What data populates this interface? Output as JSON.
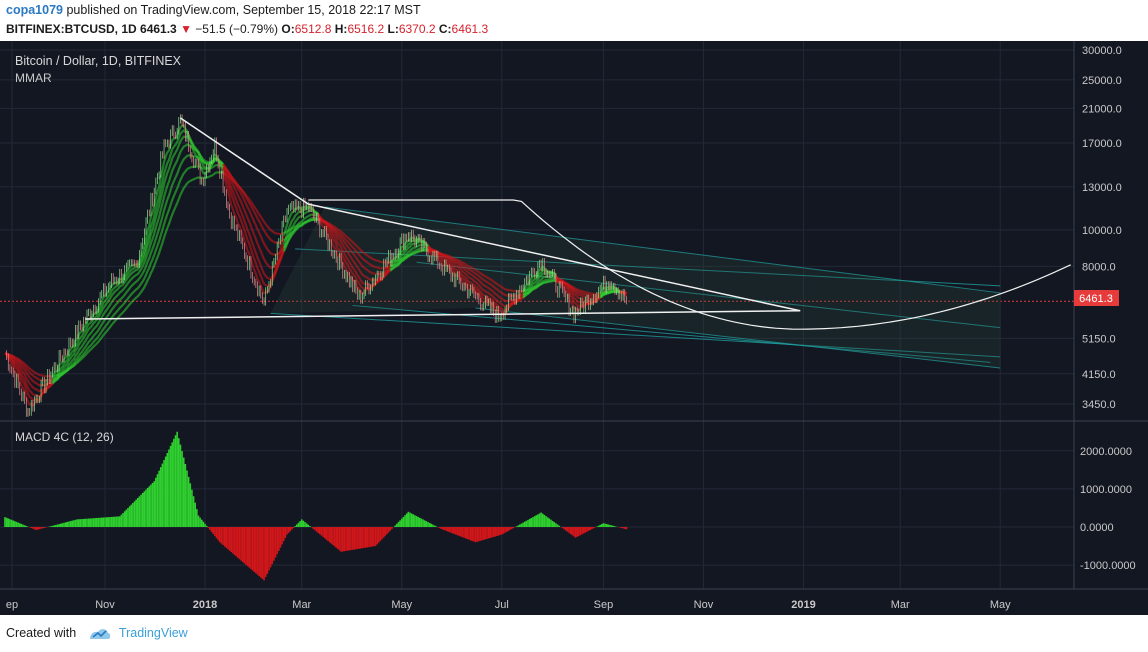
{
  "header": {
    "author": "copa1079",
    "published_text": "published on TradingView.com, September 15, 2018 22:17 MST",
    "symbol": "BITFINEX:BTCUSD, 1D",
    "last": "6461.3",
    "arrow": "▼",
    "change": "−51.5 (−0.79%)",
    "o_label": "O:",
    "o_value": "6512.8",
    "h_label": "H:",
    "h_value": "6516.2",
    "l_label": "L:",
    "l_value": "6370.2",
    "c_label": "C:",
    "c_value": "6461.3"
  },
  "footer": {
    "created_with": "Created with",
    "brand": "TradingView"
  },
  "colors": {
    "background": "#131722",
    "grid": "#232838",
    "bull": "#2fd12f",
    "bear": "#d3161a",
    "channel": "#1fa7a7",
    "trendline": "#f0f0f0",
    "price_label": "#e63b3b"
  },
  "chart_data": {
    "type": "candlestick",
    "title": "Bitcoin / Dollar, 1D, BITFINEX",
    "indicator": "MMAR",
    "current_price_label": "6461.3",
    "x_ticks": [
      "ep",
      "Nov",
      "2018",
      "Mar",
      "May",
      "Jul",
      "Sep",
      "Nov",
      "2019",
      "Mar",
      "May"
    ],
    "y_scale": "log",
    "y_ticks": [
      "30000.0",
      "25000.0",
      "21000.0",
      "17000.0",
      "13000.0",
      "10000.0",
      "8000.0",
      "6461.3",
      "5150.0",
      "4150.0",
      "3450.0"
    ],
    "price_path": [
      {
        "date": "2017-09-01",
        "close": 4700
      },
      {
        "date": "2017-09-15",
        "close": 3300
      },
      {
        "date": "2017-10-01",
        "close": 4300
      },
      {
        "date": "2017-10-20",
        "close": 5800
      },
      {
        "date": "2017-11-05",
        "close": 7300
      },
      {
        "date": "2017-11-20",
        "close": 8100
      },
      {
        "date": "2017-12-07",
        "close": 16500
      },
      {
        "date": "2017-12-17",
        "close": 19500
      },
      {
        "date": "2017-12-30",
        "close": 13500
      },
      {
        "date": "2018-01-07",
        "close": 16800
      },
      {
        "date": "2018-01-16",
        "close": 11000
      },
      {
        "date": "2018-02-06",
        "close": 6400
      },
      {
        "date": "2018-02-20",
        "close": 11200
      },
      {
        "date": "2018-03-05",
        "close": 11500
      },
      {
        "date": "2018-04-05",
        "close": 6600
      },
      {
        "date": "2018-05-05",
        "close": 9800
      },
      {
        "date": "2018-06-01",
        "close": 7500
      },
      {
        "date": "2018-06-29",
        "close": 5900
      },
      {
        "date": "2018-07-25",
        "close": 8300
      },
      {
        "date": "2018-08-14",
        "close": 6000
      },
      {
        "date": "2018-09-05",
        "close": 7400
      },
      {
        "date": "2018-09-15",
        "close": 6461.3
      }
    ],
    "macd": {
      "label": "MACD 4C (12, 26)",
      "y_ticks": [
        "2000.0000",
        "1000.0000",
        "0.0000",
        "-1000.0000"
      ],
      "histogram": [
        {
          "date": "2017-09-01",
          "value": 260
        },
        {
          "date": "2017-09-20",
          "value": -80
        },
        {
          "date": "2017-10-15",
          "value": 200
        },
        {
          "date": "2017-11-10",
          "value": 280
        },
        {
          "date": "2017-12-01",
          "value": 1200
        },
        {
          "date": "2017-12-15",
          "value": 2500
        },
        {
          "date": "2017-12-28",
          "value": 300
        },
        {
          "date": "2018-01-10",
          "value": -400
        },
        {
          "date": "2018-02-06",
          "value": -1400
        },
        {
          "date": "2018-02-20",
          "value": -200
        },
        {
          "date": "2018-03-01",
          "value": 200
        },
        {
          "date": "2018-03-25",
          "value": -650
        },
        {
          "date": "2018-04-15",
          "value": -500
        },
        {
          "date": "2018-05-05",
          "value": 400
        },
        {
          "date": "2018-05-25",
          "value": -50
        },
        {
          "date": "2018-06-15",
          "value": -400
        },
        {
          "date": "2018-07-01",
          "value": -200
        },
        {
          "date": "2018-07-25",
          "value": 380
        },
        {
          "date": "2018-08-15",
          "value": -280
        },
        {
          "date": "2018-09-01",
          "value": 100
        },
        {
          "date": "2018-09-15",
          "value": -60
        }
      ]
    }
  }
}
